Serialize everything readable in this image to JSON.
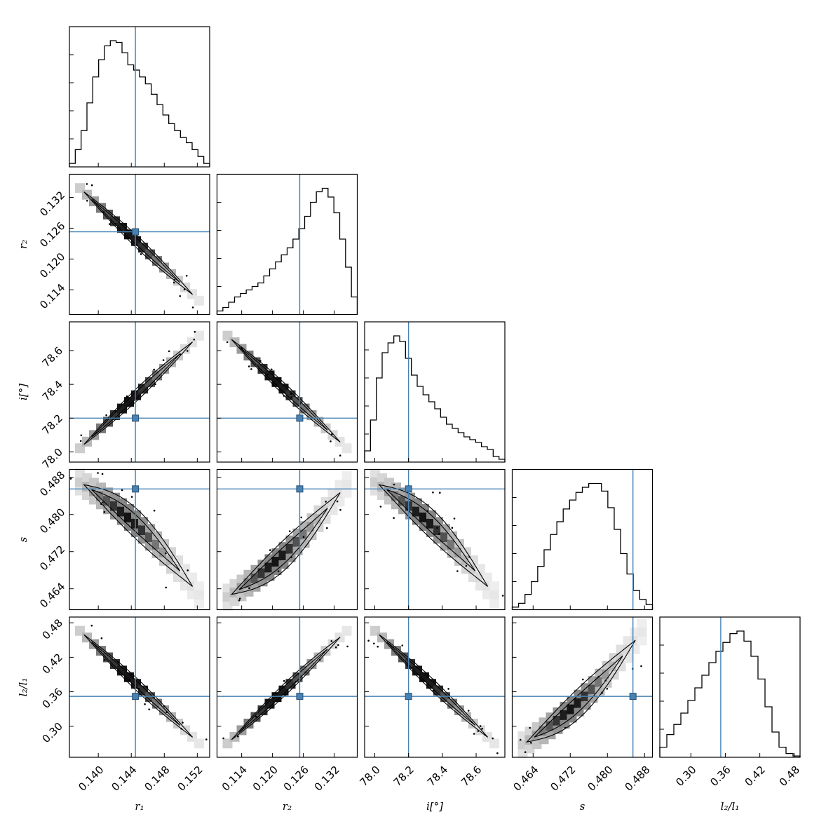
{
  "chart_data": {
    "type": "corner",
    "truth_color": "#4682b4",
    "parameters": [
      {
        "key": "r1",
        "label": "r₁",
        "range": [
          0.1365,
          0.1535
        ],
        "ticks": [
          "0.140",
          "0.144",
          "0.148",
          "0.152"
        ],
        "truth": 0.1445
      },
      {
        "key": "r2",
        "label": "r₂",
        "range": [
          0.1092,
          0.1365
        ],
        "ticks": [
          "0.114",
          "0.120",
          "0.126",
          "0.132"
        ],
        "truth": 0.1253
      },
      {
        "key": "i",
        "label": "i[°]",
        "range": [
          77.94,
          78.77
        ],
        "ticks": [
          "78.0",
          "78.2",
          "78.4",
          "78.6"
        ],
        "truth": 78.2
      },
      {
        "key": "s",
        "label": "s",
        "range": [
          0.4595,
          0.4897
        ],
        "ticks": [
          "0.464",
          "0.472",
          "0.480",
          "0.488"
        ],
        "truth": 0.4855
      },
      {
        "key": "l2l1",
        "label": "l₂/l₁",
        "range": [
          0.246,
          0.49
        ],
        "ticks": [
          "0.30",
          "0.36",
          "0.42",
          "0.48"
        ],
        "truth": 0.352
      }
    ],
    "histograms": {
      "r1": [
        2,
        10,
        21,
        37,
        52,
        62,
        70,
        73,
        72,
        66,
        59,
        56,
        52,
        48,
        42,
        36,
        30,
        25,
        21,
        17,
        14,
        10,
        6,
        2
      ],
      "r2": [
        2,
        4,
        7,
        10,
        12,
        14,
        16,
        18,
        22,
        26,
        30,
        34,
        38,
        43,
        49,
        56,
        64,
        70,
        72,
        67,
        58,
        43,
        27,
        10
      ],
      "i": [
        8,
        30,
        60,
        78,
        85,
        90,
        86,
        74,
        62,
        54,
        48,
        43,
        38,
        32,
        27,
        24,
        21,
        18,
        16,
        14,
        11,
        9,
        4,
        2
      ],
      "s": [
        2,
        5,
        12,
        22,
        34,
        47,
        59,
        69,
        79,
        86,
        92,
        96,
        99,
        99,
        93,
        80,
        63,
        44,
        28,
        15,
        8,
        4
      ],
      "l2l1": [
        8,
        18,
        26,
        35,
        45,
        55,
        65,
        75,
        84,
        91,
        98,
        100,
        92,
        80,
        62,
        40,
        20,
        8,
        3,
        1
      ]
    }
  }
}
